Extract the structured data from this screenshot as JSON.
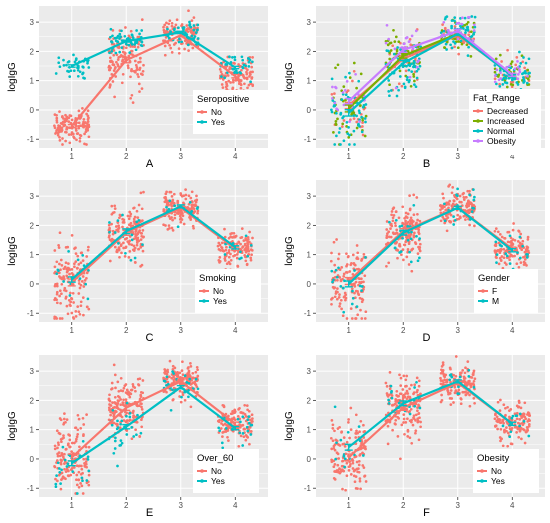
{
  "figure": {
    "colors": {
      "panel_bg": "#EBEBEB",
      "grid": "#FFFFFF",
      "series_1": "#F8766D",
      "series_2": "#00BFC4",
      "series_3": "#7CAE00",
      "series_4": "#C77CFF"
    }
  },
  "chart_data": [
    {
      "type": "scatter",
      "caption": "A",
      "xlabel": "",
      "ylabel": "logIgG",
      "x_ticks": [
        "1",
        "2",
        "3",
        "4"
      ],
      "xlim": [
        0.4,
        4.6
      ],
      "y_ticks": [
        -1,
        0,
        1,
        2,
        3
      ],
      "ylim": [
        -1.3,
        3.55
      ],
      "grid": true,
      "legend": {
        "title": "Seropositive",
        "position": "bottom-right",
        "entries": [
          "No",
          "Yes"
        ]
      },
      "series": [
        {
          "name": "No",
          "color": "#F8766D",
          "means": [
            -0.55,
            1.7,
            2.55,
            1.15
          ],
          "spread": [
            0.28,
            0.5,
            0.3,
            0.3
          ],
          "n": [
            130,
            140,
            120,
            110
          ]
        },
        {
          "name": "Yes",
          "color": "#00BFC4",
          "means": [
            1.5,
            2.35,
            2.65,
            1.45
          ],
          "spread": [
            0.22,
            0.18,
            0.2,
            0.22
          ],
          "n": [
            40,
            55,
            45,
            35
          ]
        }
      ]
    },
    {
      "type": "scatter",
      "caption": "B",
      "xlabel": "",
      "ylabel": "logIgG",
      "x_ticks": [
        "1",
        "2",
        "3",
        "4"
      ],
      "xlim": [
        0.4,
        4.6
      ],
      "y_ticks": [
        -1,
        0,
        1,
        2,
        3
      ],
      "ylim": [
        -1.3,
        3.55
      ],
      "grid": true,
      "legend": {
        "title": "Fat_Range",
        "position": "bottom-right",
        "entries": [
          "Decreased",
          "Increased",
          "Normal",
          "Obesity"
        ]
      },
      "series": [
        {
          "name": "Decreased",
          "color": "#F8766D",
          "means": [
            0.15,
            1.75,
            2.55,
            1.2
          ],
          "spread": [
            0.6,
            0.45,
            0.3,
            0.3
          ],
          "n": [
            25,
            30,
            25,
            20
          ]
        },
        {
          "name": "Increased",
          "color": "#7CAE00",
          "means": [
            0.05,
            1.85,
            2.6,
            1.2
          ],
          "spread": [
            0.65,
            0.45,
            0.3,
            0.3
          ],
          "n": [
            45,
            55,
            45,
            40
          ]
        },
        {
          "name": "Normal",
          "color": "#00BFC4",
          "means": [
            -0.1,
            1.6,
            2.6,
            1.15
          ],
          "spread": [
            0.6,
            0.5,
            0.3,
            0.3
          ],
          "n": [
            60,
            70,
            60,
            55
          ]
        },
        {
          "name": "Obesity",
          "color": "#C77CFF",
          "means": [
            0.3,
            2.05,
            2.7,
            1.2
          ],
          "spread": [
            0.5,
            0.45,
            0.3,
            0.3
          ],
          "n": [
            20,
            25,
            20,
            18
          ]
        }
      ]
    },
    {
      "type": "scatter",
      "caption": "C",
      "xlabel": "",
      "ylabel": "logIgG",
      "x_ticks": [
        "1",
        "2",
        "3",
        "4"
      ],
      "xlim": [
        0.4,
        4.6
      ],
      "y_ticks": [
        -1,
        0,
        1,
        2,
        3
      ],
      "ylim": [
        -1.3,
        3.55
      ],
      "grid": true,
      "legend": {
        "title": "Smoking",
        "position": "bottom-right",
        "entries": [
          "No",
          "Yes"
        ]
      },
      "series": [
        {
          "name": "No",
          "color": "#F8766D",
          "means": [
            0.05,
            1.75,
            2.6,
            1.2
          ],
          "spread": [
            0.65,
            0.5,
            0.3,
            0.32
          ],
          "n": [
            150,
            170,
            150,
            130
          ]
        },
        {
          "name": "Yes",
          "color": "#00BFC4",
          "means": [
            0.15,
            1.8,
            2.65,
            1.25
          ],
          "spread": [
            0.5,
            0.45,
            0.28,
            0.3
          ],
          "n": [
            15,
            18,
            15,
            12
          ]
        }
      ]
    },
    {
      "type": "scatter",
      "caption": "D",
      "xlabel": "",
      "ylabel": "logIgG",
      "x_ticks": [
        "1",
        "2",
        "3",
        "4"
      ],
      "xlim": [
        0.4,
        4.6
      ],
      "y_ticks": [
        -1,
        0,
        1,
        2,
        3
      ],
      "ylim": [
        -1.3,
        3.55
      ],
      "grid": true,
      "legend": {
        "title": "Gender",
        "position": "bottom-right",
        "entries": [
          "F",
          "M"
        ]
      },
      "series": [
        {
          "name": "F",
          "color": "#F8766D",
          "means": [
            0.1,
            1.8,
            2.6,
            1.2
          ],
          "spread": [
            0.65,
            0.5,
            0.3,
            0.32
          ],
          "n": [
            140,
            160,
            140,
            120
          ]
        },
        {
          "name": "M",
          "color": "#00BFC4",
          "means": [
            0.0,
            1.75,
            2.6,
            1.15
          ],
          "spread": [
            0.55,
            0.45,
            0.28,
            0.3
          ],
          "n": [
            20,
            25,
            20,
            18
          ]
        }
      ]
    },
    {
      "type": "scatter",
      "caption": "E",
      "xlabel": "",
      "ylabel": "logIgG",
      "x_ticks": [
        "1",
        "2",
        "3",
        "4"
      ],
      "xlim": [
        0.4,
        4.6
      ],
      "y_ticks": [
        -1,
        0,
        1,
        2,
        3
      ],
      "ylim": [
        -1.3,
        3.55
      ],
      "grid": true,
      "legend": {
        "title": "Over_60",
        "position": "bottom-right",
        "entries": [
          "No",
          "Yes"
        ]
      },
      "series": [
        {
          "name": "No",
          "color": "#F8766D",
          "means": [
            0.05,
            1.75,
            2.65,
            1.2
          ],
          "spread": [
            0.65,
            0.5,
            0.3,
            0.32
          ],
          "n": [
            150,
            170,
            150,
            130
          ]
        },
        {
          "name": "Yes",
          "color": "#00BFC4",
          "means": [
            -0.15,
            1.1,
            2.45,
            1.05
          ],
          "spread": [
            0.45,
            0.4,
            0.3,
            0.3
          ],
          "n": [
            25,
            30,
            25,
            22
          ]
        }
      ]
    },
    {
      "type": "scatter",
      "caption": "F",
      "xlabel": "",
      "ylabel": "logIgG",
      "x_ticks": [
        "1",
        "2",
        "3",
        "4"
      ],
      "xlim": [
        0.4,
        4.6
      ],
      "y_ticks": [
        -1,
        0,
        1,
        2,
        3
      ],
      "ylim": [
        -1.3,
        3.55
      ],
      "grid": true,
      "legend": {
        "title": "Obesity",
        "position": "bottom-right",
        "entries": [
          "No",
          "Yes"
        ]
      },
      "series": [
        {
          "name": "No",
          "color": "#F8766D",
          "means": [
            0.05,
            1.75,
            2.6,
            1.2
          ],
          "spread": [
            0.65,
            0.5,
            0.3,
            0.32
          ],
          "n": [
            150,
            170,
            150,
            130
          ]
        },
        {
          "name": "Yes",
          "color": "#00BFC4",
          "means": [
            0.4,
            1.9,
            2.65,
            1.2
          ],
          "spread": [
            0.55,
            0.45,
            0.28,
            0.3
          ],
          "n": [
            15,
            18,
            15,
            12
          ]
        }
      ]
    }
  ]
}
